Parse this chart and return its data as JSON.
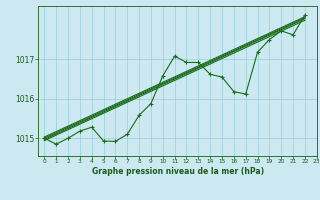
{
  "title": "Graphe pression niveau de la mer (hPa)",
  "bg_color": "#cce8f0",
  "grid_color": "#99cdd8",
  "line_color": "#1a6b1a",
  "text_color": "#1a5c1a",
  "xlim": [
    -0.5,
    23
  ],
  "ylim": [
    1014.55,
    1018.35
  ],
  "xticks": [
    0,
    1,
    2,
    3,
    4,
    5,
    6,
    7,
    8,
    9,
    10,
    11,
    12,
    13,
    14,
    15,
    16,
    17,
    18,
    19,
    20,
    21,
    22,
    23
  ],
  "yticks": [
    1015,
    1016,
    1017
  ],
  "main_series_x": [
    0,
    1,
    2,
    3,
    4,
    5,
    6,
    7,
    8,
    9,
    10,
    11,
    12,
    13,
    14,
    15,
    16,
    17,
    18,
    19,
    20,
    21,
    22
  ],
  "main_series_y": [
    1015.0,
    1014.85,
    1015.0,
    1015.18,
    1015.28,
    1014.93,
    1014.92,
    1015.1,
    1015.58,
    1015.88,
    1016.58,
    1017.08,
    1016.92,
    1016.92,
    1016.62,
    1016.55,
    1016.18,
    1016.12,
    1017.18,
    1017.5,
    1017.72,
    1017.62,
    1018.12
  ],
  "trend_lines": [
    [
      [
        0,
        22
      ],
      [
        1015.0,
        1018.05
      ]
    ],
    [
      [
        0,
        22
      ],
      [
        1015.03,
        1018.08
      ]
    ],
    [
      [
        0,
        22
      ],
      [
        1014.97,
        1018.03
      ]
    ],
    [
      [
        0,
        22
      ],
      [
        1014.94,
        1017.99
      ]
    ]
  ]
}
